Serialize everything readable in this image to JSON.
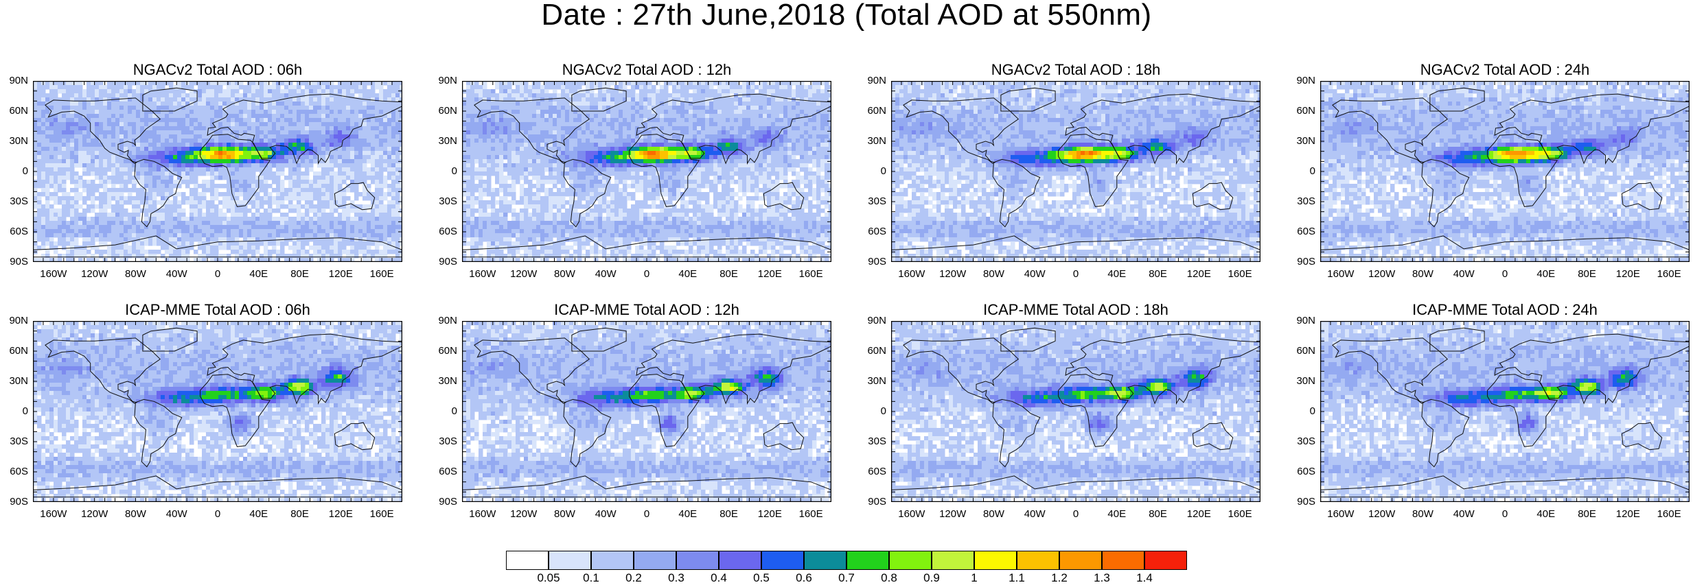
{
  "title": "Date : 27th June,2018 (Total AOD at 550nm)",
  "lat_ticks": [
    "90N",
    "60N",
    "30N",
    "0",
    "30S",
    "60S",
    "90S"
  ],
  "lon_ticks": [
    "160W",
    "120W",
    "80W",
    "40W",
    "0",
    "40E",
    "80E",
    "120E",
    "160E"
  ],
  "panels": [
    {
      "title": "NGACv2 Total AOD : 06h",
      "model": "NGACv2",
      "hour": "06h"
    },
    {
      "title": "NGACv2 Total AOD : 12h",
      "model": "NGACv2",
      "hour": "12h"
    },
    {
      "title": "NGACv2 Total AOD : 18h",
      "model": "NGACv2",
      "hour": "18h"
    },
    {
      "title": "NGACv2 Total AOD : 24h",
      "model": "NGACv2",
      "hour": "24h"
    },
    {
      "title": "ICAP-MME Total AOD : 06h",
      "model": "ICAP-MME",
      "hour": "06h"
    },
    {
      "title": "ICAP-MME Total AOD : 12h",
      "model": "ICAP-MME",
      "hour": "12h"
    },
    {
      "title": "ICAP-MME Total AOD : 18h",
      "model": "ICAP-MME",
      "hour": "18h"
    },
    {
      "title": "ICAP-MME Total AOD : 24h",
      "model": "ICAP-MME",
      "hour": "24h"
    }
  ],
  "colorbar": {
    "labels": [
      "0.05",
      "0.1",
      "0.2",
      "0.3",
      "0.4",
      "0.5",
      "0.6",
      "0.7",
      "0.8",
      "0.9",
      "1",
      "1.1",
      "1.2",
      "1.3",
      "1.4"
    ],
    "colors": [
      "#ffffff",
      "#d8e4fb",
      "#b3c6f6",
      "#94aaf1",
      "#7d8bef",
      "#6b67ee",
      "#1e5df0",
      "#0c8c9a",
      "#22d11c",
      "#82f20e",
      "#c2f43b",
      "#fcf800",
      "#fcc200",
      "#fc9800",
      "#fa6c00",
      "#f5210a"
    ]
  }
}
